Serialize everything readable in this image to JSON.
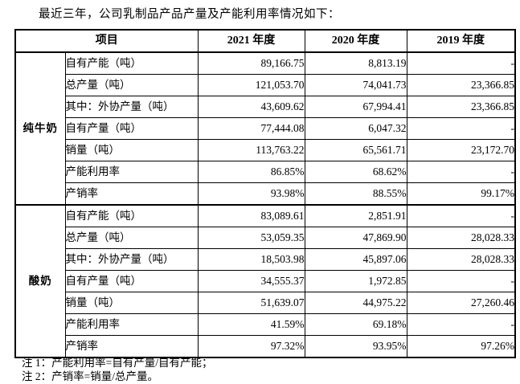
{
  "page": {
    "intro": "最近三年，公司乳制品产品产量及产能利用率情况如下："
  },
  "table": {
    "header": {
      "item": "项目",
      "years": [
        "2021 年度",
        "2020 年度",
        "2019 年度"
      ]
    },
    "groups": [
      {
        "name": "纯牛奶",
        "rows": [
          {
            "label": "自有产能（吨）",
            "values": [
              "89,166.75",
              "8,813.19",
              "-"
            ]
          },
          {
            "label": "总产量（吨）",
            "values": [
              "121,053.70",
              "74,041.73",
              "23,366.85"
            ]
          },
          {
            "label": "其中：外协产量（吨）",
            "values": [
              "43,609.62",
              "67,994.41",
              "23,366.85"
            ]
          },
          {
            "label": "自有产量（吨）",
            "values": [
              "77,444.08",
              "6,047.32",
              "-"
            ]
          },
          {
            "label": "销量（吨）",
            "values": [
              "113,763.22",
              "65,561.71",
              "23,172.70"
            ]
          },
          {
            "label": "产能利用率",
            "values": [
              "86.85%",
              "68.62%",
              "-"
            ]
          },
          {
            "label": "产销率",
            "values": [
              "93.98%",
              "88.55%",
              "99.17%"
            ]
          }
        ]
      },
      {
        "name": "酸奶",
        "rows": [
          {
            "label": "自有产能（吨）",
            "values": [
              "83,089.61",
              "2,851.91",
              "-"
            ]
          },
          {
            "label": "总产量（吨）",
            "values": [
              "53,059.35",
              "47,869.90",
              "28,028.33"
            ]
          },
          {
            "label": "其中：外协产量（吨）",
            "values": [
              "18,503.98",
              "45,897.06",
              "28,028.33"
            ]
          },
          {
            "label": "自有产量（吨）",
            "values": [
              "34,555.37",
              "1,972.85",
              "-"
            ]
          },
          {
            "label": "销量（吨）",
            "values": [
              "51,639.07",
              "44,975.22",
              "27,260.46"
            ]
          },
          {
            "label": "产能利用率",
            "values": [
              "41.59%",
              "69.18%",
              "-"
            ]
          },
          {
            "label": "产销率",
            "values": [
              "97.32%",
              "93.95%",
              "97.26%"
            ]
          }
        ]
      }
    ]
  },
  "notes": [
    "注 1：产能利用率=自有产量/自有产能；",
    "注 2：产销率=销量/总产量。"
  ],
  "colors": {
    "text": "#000000",
    "border": "#000000",
    "background": "#ffffff"
  }
}
